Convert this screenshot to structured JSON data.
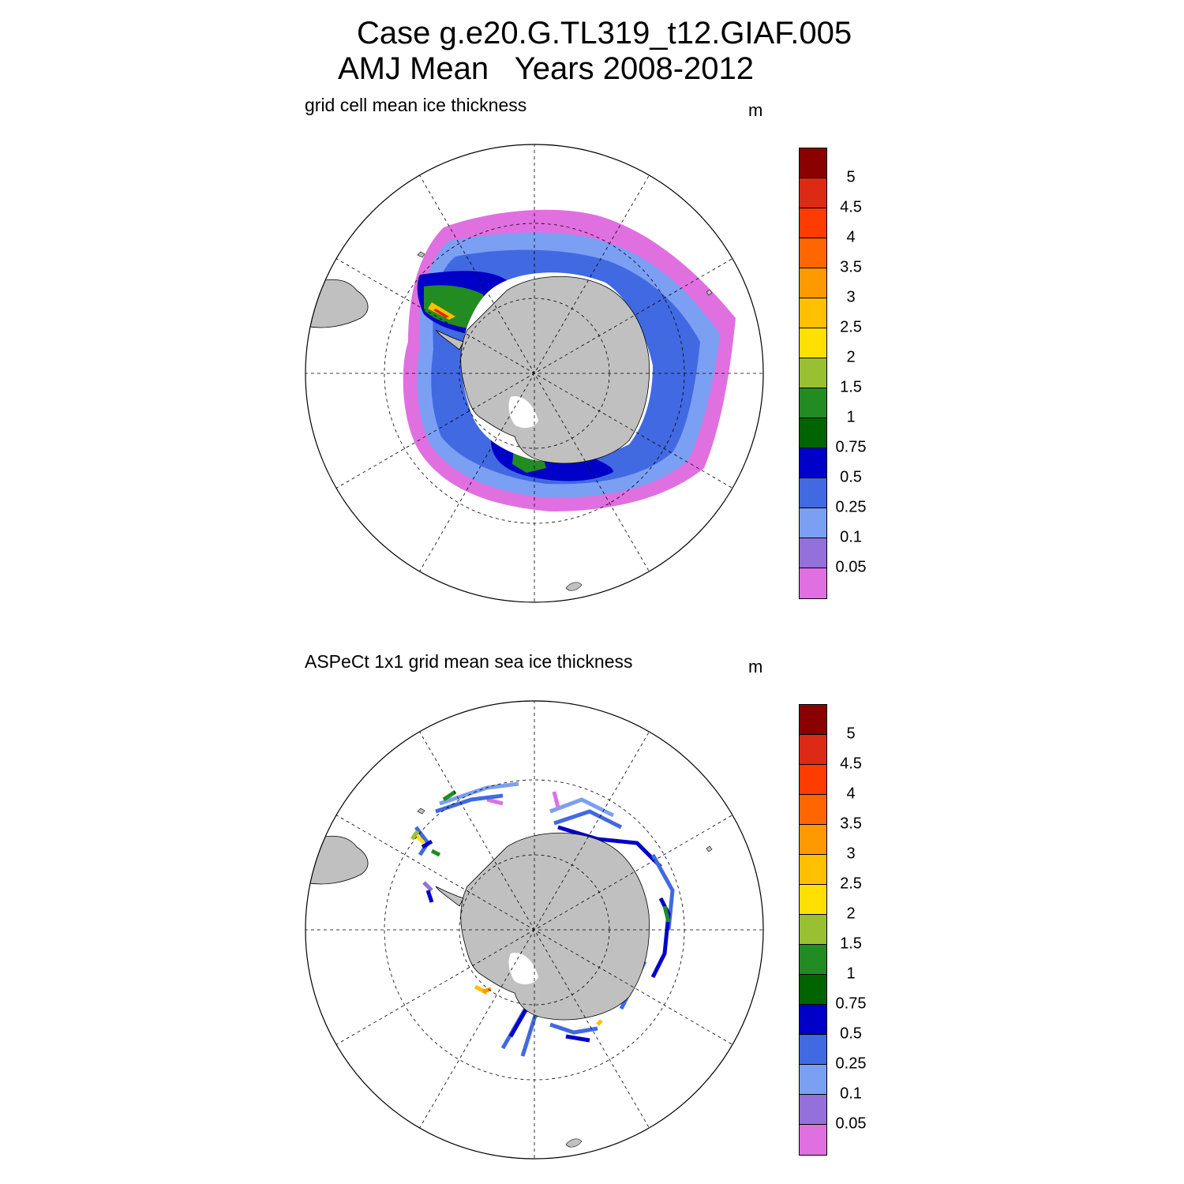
{
  "title": {
    "line1": "Case g.e20.G.TL319_t12.GIAF.005",
    "line2": "AMJ Mean   Years 2008-2012"
  },
  "colorbar": {
    "labels": [
      "5",
      "4.5",
      "4",
      "3.5",
      "3",
      "2.5",
      "2",
      "1.5",
      "1",
      "0.75",
      "0.5",
      "0.25",
      "0.1",
      "0.05"
    ],
    "colors": [
      "#8b0000",
      "#dc2a14",
      "#ff3c00",
      "#ff6600",
      "#ff9900",
      "#ffc000",
      "#ffe000",
      "#99c030",
      "#228b22",
      "#006400",
      "#0000c8",
      "#4169e1",
      "#7b9ff2",
      "#9370db",
      "#e070e0"
    ]
  },
  "panels": [
    {
      "title": "grid cell mean ice thickness",
      "unit": "m"
    },
    {
      "title": "ASPeCt 1x1 grid mean sea ice thickness",
      "unit": "m"
    }
  ],
  "style": {
    "land_color": "#c0c0c0",
    "grid": "dashed lat/lon",
    "projection": "south polar stereographic"
  }
}
